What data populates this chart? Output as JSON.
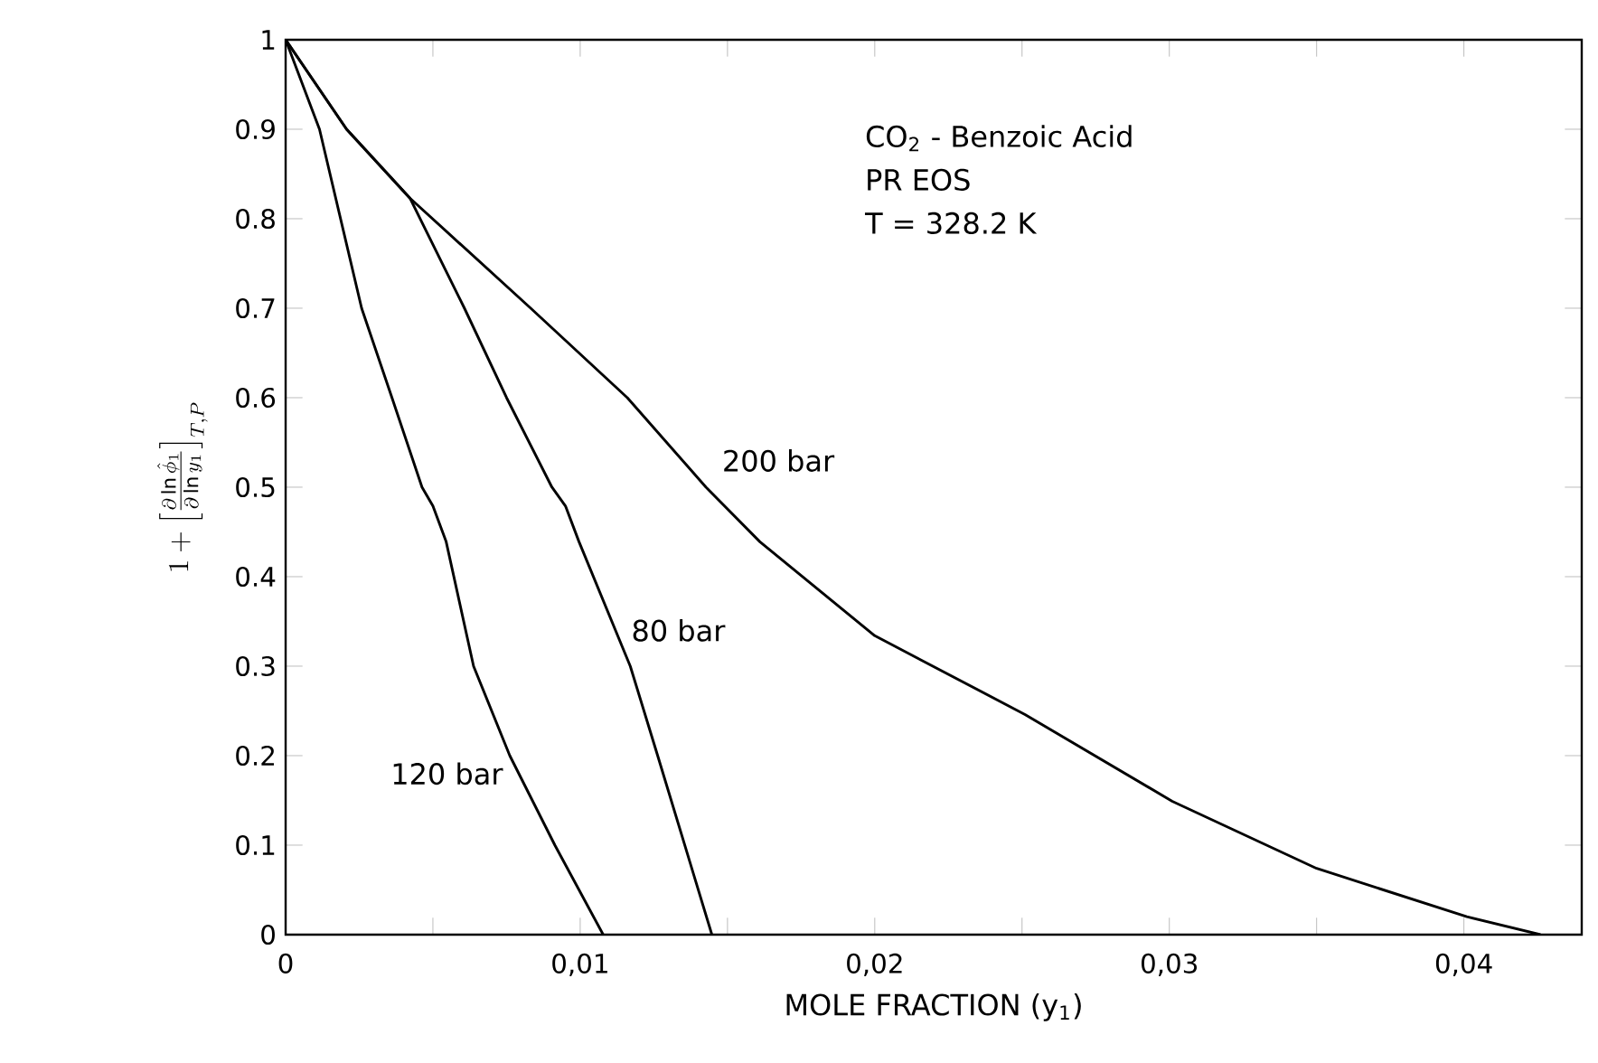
{
  "chart_data": {
    "type": "line",
    "xlabel": "MOLE FRACTION (y$_{1}$)",
    "ylabel": "1+\\left[\\frac{\\partial \\ln \\hat{\\phi}_{1}}{\\partial \\ln y_{1}}\\right]_{T,P}",
    "xlim": [
      0,
      0.044
    ],
    "ylim": [
      0,
      1
    ],
    "xticks": [
      {
        "value": 0,
        "label": "0"
      },
      {
        "value": 0.005,
        "label": null
      },
      {
        "value": 0.01,
        "label": "0,01"
      },
      {
        "value": 0.015,
        "label": null
      },
      {
        "value": 0.02,
        "label": "0,02"
      },
      {
        "value": 0.025,
        "label": null
      },
      {
        "value": 0.03,
        "label": "0,03"
      },
      {
        "value": 0.035,
        "label": null
      },
      {
        "value": 0.04,
        "label": "0,04"
      }
    ],
    "yticks": [
      0,
      0.1,
      0.2,
      0.3,
      0.4,
      0.5,
      0.6,
      0.7,
      0.8,
      0.9,
      1
    ],
    "grid": false,
    "marker": "none",
    "line_style": "solid",
    "series": [
      {
        "name": "120 bar",
        "color": "#000000",
        "x": [
          0,
          0.00115,
          0.00258,
          0.00361,
          0.00463,
          0.005,
          0.00545,
          0.00638,
          0.00761,
          0.00914,
          0.01078
        ],
        "values": [
          1,
          0.9,
          0.7,
          0.6,
          0.5,
          0.479,
          0.439,
          0.3,
          0.2,
          0.1,
          0
        ]
      },
      {
        "name": "80 bar",
        "color": "#000000",
        "x": [
          0,
          0.00207,
          0.00422,
          0.00607,
          0.0075,
          0.00904,
          0.0095,
          0.00996,
          0.0117,
          0.01263,
          0.01355,
          0.01447
        ],
        "values": [
          1,
          0.9,
          0.823,
          0.7,
          0.6,
          0.5,
          0.479,
          0.439,
          0.3,
          0.2,
          0.1,
          0
        ]
      },
      {
        "name": "200 bar",
        "color": "#000000",
        "x": [
          0,
          0.00207,
          0.00422,
          0.00832,
          0.0116,
          0.01427,
          0.0161,
          0.02,
          0.0251,
          0.0301,
          0.035,
          0.0401,
          0.0426
        ],
        "values": [
          1,
          0.9,
          0.823,
          0.7,
          0.6,
          0.5,
          0.439,
          0.334,
          0.246,
          0.149,
          0.074,
          0.02,
          0
        ]
      }
    ],
    "annotations": [
      "CO$_{2}$ - Benzoic Acid",
      "PR    EOS",
      "T  =   328.2 K"
    ]
  }
}
